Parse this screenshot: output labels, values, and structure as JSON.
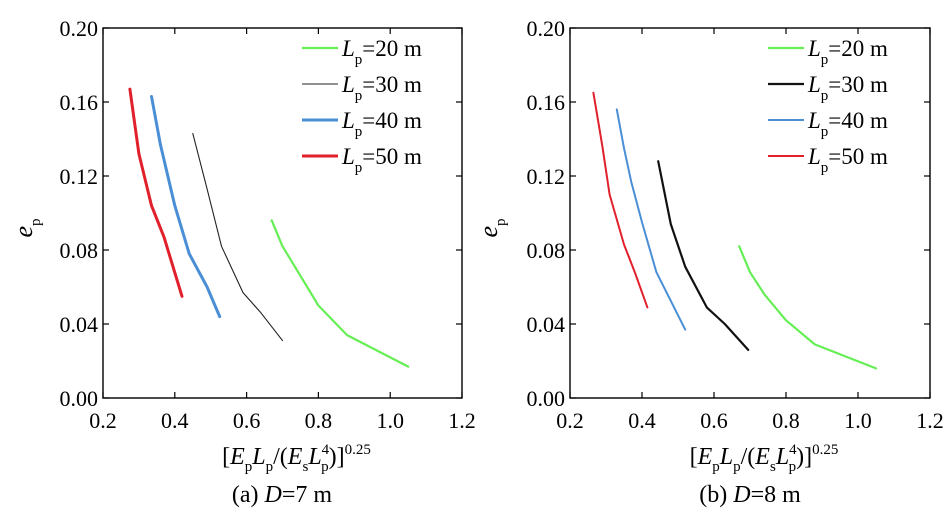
{
  "chart_data": [
    {
      "type": "line",
      "caption": {
        "prefix": "(a) ",
        "var": "D",
        "suffix": "=7 m"
      },
      "xlabel": {
        "parts": [
          "[",
          "E",
          "p",
          "L",
          "p",
          "/(",
          "E",
          "s",
          "L",
          "4",
          "p",
          ")]",
          "0.25"
        ]
      },
      "ylabel": {
        "main": "e",
        "sub": "p"
      },
      "xlim": [
        0.2,
        1.2
      ],
      "ylim": [
        0.0,
        0.2
      ],
      "xticks": [
        "0.2",
        "0.4",
        "0.6",
        "0.8",
        "1.0",
        "1.2"
      ],
      "yticks": [
        "0.00",
        "0.04",
        "0.08",
        "0.12",
        "0.16",
        "0.20"
      ],
      "legend_position": "top-right",
      "series": [
        {
          "name": "L_p=20 m",
          "label_var": "L",
          "label_sub": "p",
          "label_rest": "=20 m",
          "color": "#66ee55",
          "width": 2.2,
          "x": [
            0.67,
            0.7,
            0.75,
            0.8,
            0.88,
            1.05
          ],
          "y": [
            0.096,
            0.082,
            0.066,
            0.05,
            0.034,
            0.017
          ]
        },
        {
          "name": "L_p=30 m",
          "label_var": "L",
          "label_sub": "p",
          "label_rest": "=30 m",
          "color": "#222222",
          "width": 1.1,
          "x": [
            0.45,
            0.49,
            0.53,
            0.59,
            0.64,
            0.7
          ],
          "y": [
            0.143,
            0.113,
            0.082,
            0.057,
            0.046,
            0.031
          ]
        },
        {
          "name": "L_p=40 m",
          "label_var": "L",
          "label_sub": "p",
          "label_rest": "=40 m",
          "color": "#4a8fd6",
          "width": 3.0,
          "x": [
            0.335,
            0.36,
            0.4,
            0.44,
            0.49,
            0.525
          ],
          "y": [
            0.163,
            0.137,
            0.104,
            0.078,
            0.06,
            0.044
          ]
        },
        {
          "name": "L_p=50 m",
          "label_var": "L",
          "label_sub": "p",
          "label_rest": "=50 m",
          "color": "#e0202a",
          "width": 3.0,
          "x": [
            0.275,
            0.3,
            0.335,
            0.37,
            0.42
          ],
          "y": [
            0.167,
            0.132,
            0.104,
            0.087,
            0.055
          ]
        }
      ]
    },
    {
      "type": "line",
      "caption": {
        "prefix": "(b) ",
        "var": "D",
        "suffix": "=8 m"
      },
      "xlabel": {
        "parts": [
          "[",
          "E",
          "p",
          "L",
          "p",
          "/(",
          "E",
          "s",
          "L",
          "4",
          "p",
          ")]",
          "0.25"
        ]
      },
      "ylabel": {
        "main": "e",
        "sub": "p"
      },
      "xlim": [
        0.2,
        1.2
      ],
      "ylim": [
        0.0,
        0.2
      ],
      "xticks": [
        "0.2",
        "0.4",
        "0.6",
        "0.8",
        "1.0",
        "1.2"
      ],
      "yticks": [
        "0.00",
        "0.04",
        "0.08",
        "0.12",
        "0.16",
        "0.20"
      ],
      "legend_position": "top-right",
      "series": [
        {
          "name": "L_p=20 m",
          "label_var": "L",
          "label_sub": "p",
          "label_rest": "=20 m",
          "color": "#66ee55",
          "width": 2.2,
          "x": [
            0.67,
            0.7,
            0.74,
            0.8,
            0.88,
            1.05
          ],
          "y": [
            0.082,
            0.068,
            0.056,
            0.042,
            0.029,
            0.016
          ]
        },
        {
          "name": "L_p=30 m",
          "label_var": "L",
          "label_sub": "p",
          "label_rest": "=30 m",
          "color": "#111111",
          "width": 2.2,
          "x": [
            0.445,
            0.48,
            0.52,
            0.58,
            0.63,
            0.695
          ],
          "y": [
            0.128,
            0.094,
            0.071,
            0.049,
            0.04,
            0.026
          ]
        },
        {
          "name": "L_p=40 m",
          "label_var": "L",
          "label_sub": "p",
          "label_rest": "=40 m",
          "color": "#4a8fd6",
          "width": 2.0,
          "x": [
            0.33,
            0.35,
            0.37,
            0.4,
            0.44,
            0.52
          ],
          "y": [
            0.156,
            0.135,
            0.117,
            0.095,
            0.068,
            0.037
          ]
        },
        {
          "name": "L_p=50 m",
          "label_var": "L",
          "label_sub": "p",
          "label_rest": "=50 m",
          "color": "#e0202a",
          "width": 2.0,
          "x": [
            0.265,
            0.29,
            0.31,
            0.35,
            0.38,
            0.415
          ],
          "y": [
            0.165,
            0.136,
            0.11,
            0.083,
            0.068,
            0.049
          ]
        }
      ]
    }
  ]
}
